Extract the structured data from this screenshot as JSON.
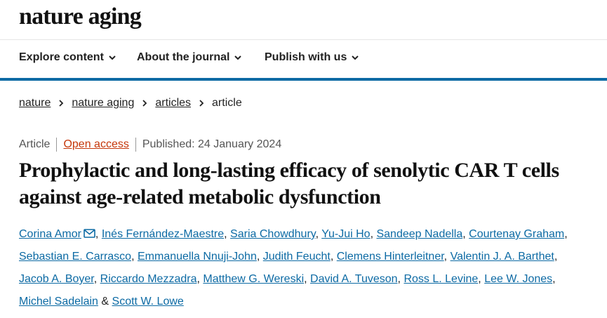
{
  "masthead": {
    "logo": "nature aging",
    "logo_icon": "nature-aging-wordmark"
  },
  "nav": {
    "items": [
      {
        "label": "Explore content",
        "icon": "chevron-down-icon"
      },
      {
        "label": "About the journal",
        "icon": "chevron-down-icon"
      },
      {
        "label": "Publish with us",
        "icon": "chevron-down-icon"
      }
    ]
  },
  "breadcrumb": {
    "items": [
      "nature",
      "nature aging",
      "articles"
    ],
    "current": "article",
    "separator_icon": "chevron-right-icon"
  },
  "meta": {
    "type": "Article",
    "access": "Open access",
    "published": "Published: 24 January 2024"
  },
  "article": {
    "title": "Prophylactic and long-lasting efficacy of senolytic CAR T cells against age-related metabolic dysfunction"
  },
  "authors": {
    "list": [
      "Corina Amor",
      "Inés Fernández-Maestre",
      "Saria Chowdhury",
      "Yu-Jui Ho",
      "Sandeep Nadella",
      "Courtenay Graham",
      "Sebastian E. Carrasco",
      "Emmanuella Nnuji-John",
      "Judith Feucht",
      "Clemens Hinterleitner",
      "Valentin J. A. Barthet",
      "Jacob A. Boyer",
      "Riccardo Mezzadra",
      "Matthew G. Wereski",
      "David A. Tuveson",
      "Ross L. Levine",
      "Lee W. Jones",
      "Michel Sadelain",
      "Scott W. Lowe"
    ],
    "comma": ",",
    "ampersand": "&",
    "corresponding_icon": "envelope-icon"
  },
  "colors": {
    "accent": "#0c6aa4",
    "open_access": "#c5370a",
    "text": "#222222"
  }
}
